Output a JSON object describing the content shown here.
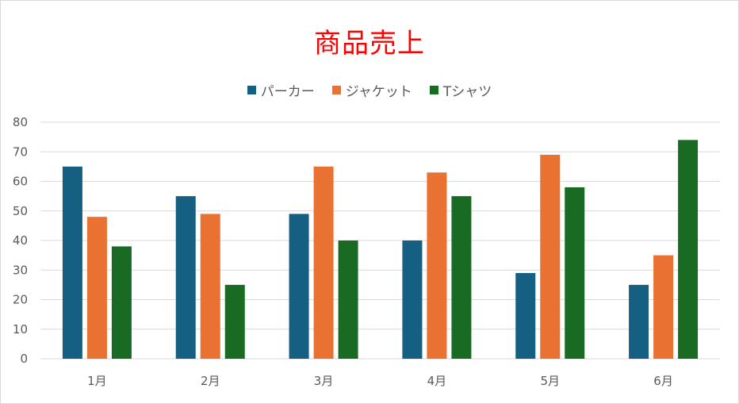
{
  "chart_data": {
    "type": "bar",
    "title": "商品売上",
    "categories": [
      "1月",
      "2月",
      "3月",
      "4月",
      "5月",
      "6月"
    ],
    "series": [
      {
        "name": "パーカー",
        "color": "#156082",
        "values": [
          65,
          55,
          49,
          40,
          29,
          25
        ]
      },
      {
        "name": "ジャケット",
        "color": "#e97132",
        "values": [
          48,
          49,
          65,
          63,
          69,
          35
        ]
      },
      {
        "name": "Tシャツ",
        "color": "#196b24",
        "values": [
          38,
          25,
          40,
          55,
          58,
          74
        ]
      }
    ],
    "yticks": [
      0,
      10,
      20,
      30,
      40,
      50,
      60,
      70,
      80
    ],
    "ylim": [
      0,
      80
    ],
    "grid": true,
    "legend_position": "top"
  }
}
